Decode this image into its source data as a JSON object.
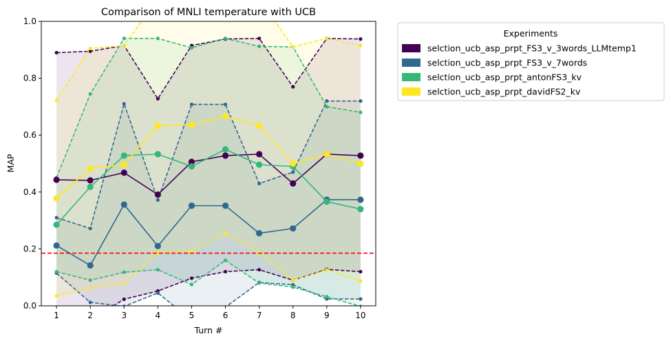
{
  "chart_data": {
    "type": "line",
    "title": "Comparison of MNLI temperature with UCB",
    "xlabel": "Turn #",
    "ylabel": "MAP",
    "x": [
      1,
      2,
      3,
      4,
      5,
      6,
      7,
      8,
      9,
      10
    ],
    "x_ticks": [
      "1",
      "2",
      "3",
      "4",
      "5",
      "6",
      "7",
      "8",
      "9",
      "10"
    ],
    "y_ticks": [
      "0.0",
      "0.2",
      "0.4",
      "0.6",
      "0.8",
      "1.0"
    ],
    "xlim": [
      0.55,
      10.45
    ],
    "ylim": [
      0,
      1
    ],
    "grid": false,
    "legend": {
      "title": "Experiments",
      "placement": "outside-upper-right"
    },
    "reference_line": {
      "y": 0.185,
      "color": "#ff0000",
      "style": "dashed"
    },
    "series": [
      {
        "name": "selction_ucb_asp_prpt_FS3_v_3words_LLMtemp1",
        "color": "#440154",
        "mean": [
          0.443,
          0.441,
          0.468,
          0.391,
          0.506,
          0.528,
          0.533,
          0.43,
          0.533,
          0.528
        ],
        "upper": [
          0.89,
          0.895,
          0.915,
          0.728,
          0.915,
          0.938,
          0.94,
          0.77,
          0.94,
          0.938
        ],
        "lower": [
          -0.05,
          -0.05,
          0.023,
          0.052,
          0.097,
          0.12,
          0.127,
          0.09,
          0.128,
          0.12
        ]
      },
      {
        "name": "selction_ucb_asp_prpt_FS3_v_7words",
        "color": "#31688e",
        "mean": [
          0.212,
          0.142,
          0.356,
          0.21,
          0.352,
          0.352,
          0.255,
          0.272,
          0.373,
          0.373
        ],
        "upper": [
          0.31,
          0.272,
          0.71,
          0.372,
          0.708,
          0.708,
          0.43,
          0.47,
          0.72,
          0.72
        ],
        "lower": [
          0.115,
          0.012,
          -0.002,
          0.045,
          -0.05,
          -0.005,
          0.082,
          0.074,
          0.024,
          0.024
        ]
      },
      {
        "name": "selction_ucb_asp_prpt_antonFS3_kv",
        "color": "#35b779",
        "mean": [
          0.285,
          0.418,
          0.528,
          0.533,
          0.49,
          0.55,
          0.496,
          0.49,
          0.366,
          0.34
        ],
        "upper": [
          0.45,
          0.745,
          0.94,
          0.94,
          0.907,
          0.94,
          0.912,
          0.91,
          0.7,
          0.68
        ],
        "lower": [
          0.12,
          0.09,
          0.118,
          0.127,
          0.075,
          0.16,
          0.08,
          0.066,
          0.032,
          -0.002
        ]
      },
      {
        "name": "selction_ucb_asp_prpt_davidFS2_kv",
        "color": "#fde725",
        "mean": [
          0.378,
          0.483,
          0.496,
          0.633,
          0.636,
          0.666,
          0.633,
          0.5,
          0.533,
          0.5
        ],
        "upper": [
          0.722,
          0.905,
          0.915,
          1.08,
          1.08,
          1.08,
          1.08,
          0.91,
          0.94,
          0.915
        ],
        "lower": [
          0.035,
          0.062,
          0.078,
          0.187,
          0.192,
          0.253,
          0.187,
          0.09,
          0.126,
          0.087
        ]
      }
    ]
  }
}
